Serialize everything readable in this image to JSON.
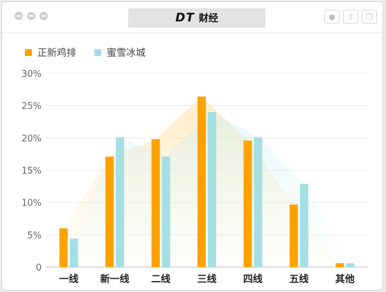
{
  "window": {
    "brand_mark": "DT",
    "brand_name": "财经"
  },
  "chart_data": {
    "type": "bar",
    "categories": [
      "一线",
      "新一线",
      "二线",
      "三线",
      "四线",
      "五线",
      "其他"
    ],
    "series": [
      {
        "name": "正新鸡排",
        "color": "#ffa200",
        "values": [
          6,
          17.1,
          19.8,
          26.4,
          19.6,
          9.7,
          0.6
        ]
      },
      {
        "name": "蜜雪冰城",
        "color": "#a5dfe3",
        "values": [
          4.4,
          20.1,
          17.1,
          24.0,
          20.1,
          12.9,
          0.6
        ]
      }
    ],
    "ylim": [
      0,
      30
    ],
    "yticks": [
      "0",
      "5%",
      "10%",
      "15%",
      "20%",
      "25%",
      "30%"
    ],
    "ytick_values": [
      0,
      5,
      10,
      15,
      20,
      25,
      30
    ],
    "grid": true,
    "legend_position": "top-left"
  }
}
